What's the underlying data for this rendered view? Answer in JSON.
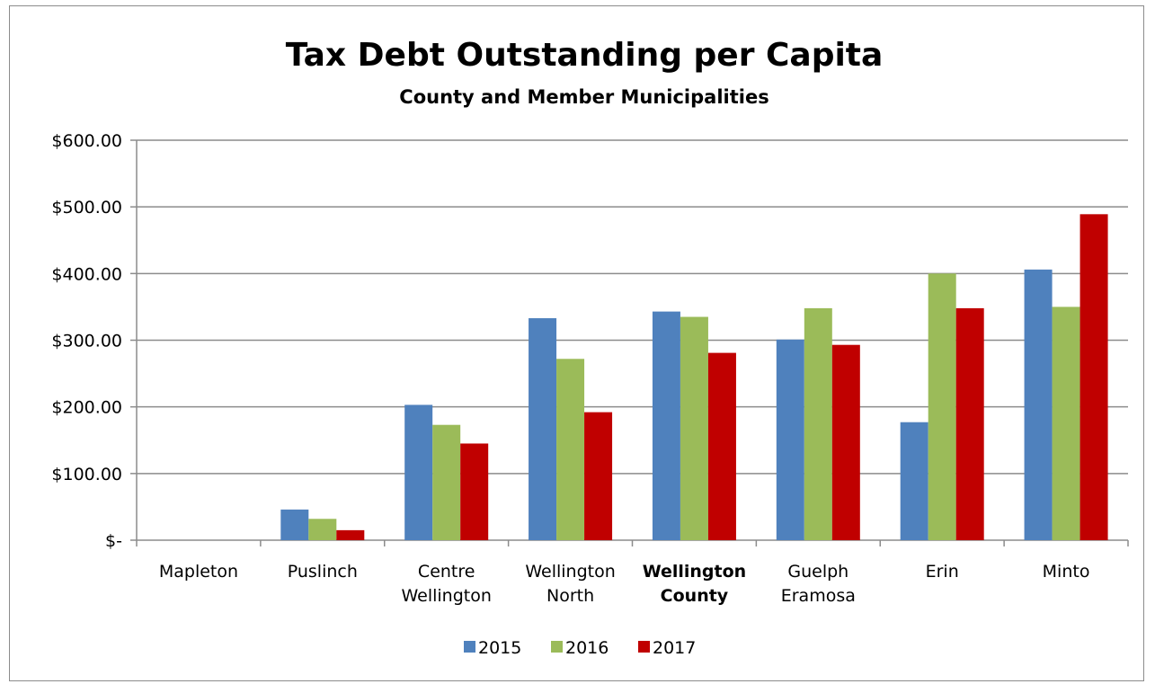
{
  "chart_data": {
    "type": "bar",
    "title": "Tax Debt Outstanding per Capita",
    "subtitle": "County and Member Municipalities",
    "categories": [
      [
        "Mapleton"
      ],
      [
        "Puslinch"
      ],
      [
        "Centre",
        "Wellington"
      ],
      [
        "Wellington",
        "North"
      ],
      [
        "Wellington",
        "County"
      ],
      [
        "Guelph",
        "Eramosa"
      ],
      [
        "Erin"
      ],
      [
        "Minto"
      ]
    ],
    "bold_categories": [
      4
    ],
    "series": [
      {
        "name": "2015",
        "color": "#4f81bd",
        "values": [
          0,
          46,
          203,
          333,
          343,
          301,
          177,
          406
        ]
      },
      {
        "name": "2016",
        "color": "#9bbb59",
        "values": [
          0,
          32,
          173,
          272,
          335,
          348,
          400,
          350
        ]
      },
      {
        "name": "2017",
        "color": "#c00000",
        "values": [
          0,
          15,
          145,
          192,
          281,
          293,
          348,
          489
        ]
      }
    ],
    "ylim": [
      0,
      600
    ],
    "yticks": [
      0,
      100,
      200,
      300,
      400,
      500,
      600
    ],
    "ytick_labels": [
      "$-",
      "$100.00",
      "$200.00",
      "$300.00",
      "$400.00",
      "$500.00",
      "$600.00"
    ],
    "xlabel": "",
    "ylabel": "",
    "grid": true,
    "legend_position": "bottom"
  }
}
